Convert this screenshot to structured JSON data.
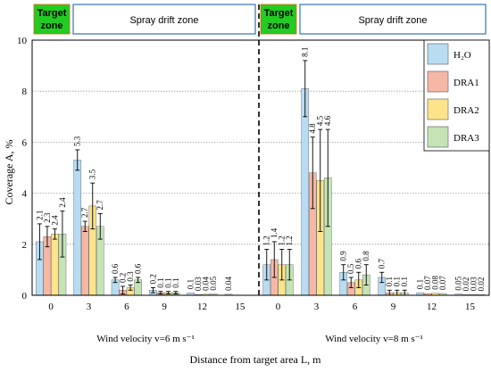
{
  "chart_data": {
    "type": "bar",
    "panels": [
      {
        "zone_target_label": [
          "Target",
          "zone"
        ],
        "zone_drift_label": "Spray drift zone",
        "footer_label": "Wind velocity v=6 m s⁻¹",
        "categories": [
          "0",
          "3",
          "6",
          "9",
          "12",
          "15"
        ],
        "series": [
          {
            "name": "H₂O",
            "values": [
              2.1,
              5.3,
              0.6,
              0.2,
              0.1,
              0.04
            ]
          },
          {
            "name": "DRA1",
            "values": [
              2.3,
              2.7,
              0.2,
              0.1,
              0.03,
              null
            ]
          },
          {
            "name": "DRA2",
            "values": [
              2.4,
              3.5,
              0.3,
              0.1,
              0.04,
              null
            ]
          },
          {
            "name": "DRA3",
            "values": [
              2.4,
              2.7,
              0.6,
              0.1,
              0.05,
              null
            ]
          }
        ],
        "errors": [
          [
            0.7,
            0.4,
            0.1,
            0.1,
            null,
            null
          ],
          [
            0.4,
            0.2,
            0.15,
            0.05,
            null,
            null
          ],
          [
            0.2,
            0.9,
            0.1,
            0.05,
            null,
            null
          ],
          [
            0.9,
            0.5,
            0.1,
            0.05,
            null,
            null
          ]
        ]
      },
      {
        "zone_target_label": [
          "Target",
          "zone"
        ],
        "zone_drift_label": "Spray drift zone",
        "footer_label": "Wind velocity v=8 m s⁻¹",
        "categories": [
          "0",
          "3",
          "6",
          "9",
          "12",
          "15"
        ],
        "series": [
          {
            "name": "H₂O",
            "values": [
              1.2,
              8.1,
              0.9,
              0.7,
              0.1,
              0.05
            ]
          },
          {
            "name": "DRA1",
            "values": [
              1.4,
              4.8,
              0.5,
              0.1,
              0.07,
              0.02
            ]
          },
          {
            "name": "DRA2",
            "values": [
              1.2,
              4.5,
              0.6,
              0.1,
              0.08,
              0.03
            ]
          },
          {
            "name": "DRA3",
            "values": [
              1.2,
              4.6,
              0.8,
              0.1,
              0.07,
              0.02
            ]
          }
        ],
        "errors": [
          [
            0.6,
            1.1,
            0.3,
            0.2,
            null,
            null
          ],
          [
            0.7,
            1.4,
            0.2,
            0.1,
            null,
            null
          ],
          [
            0.6,
            2.0,
            0.3,
            0.1,
            null,
            null
          ],
          [
            0.6,
            1.9,
            0.4,
            0.1,
            null,
            null
          ]
        ]
      }
    ],
    "legend": [
      "H₂O",
      "DRA1",
      "DRA2",
      "DRA3"
    ],
    "legend_position": "top-right",
    "colors": [
      "#b9dcf2",
      "#f5b8a6",
      "#fde38a",
      "#c4e4b5"
    ],
    "zone_target_color": "#22cc22",
    "zone_drift_border": "#2e75b6",
    "ylabel": "Coverage  A, %",
    "xlabel": "Distance from target area  L, m",
    "ylim": [
      0,
      10
    ],
    "yticks": [
      0,
      2,
      4,
      6,
      8,
      10
    ],
    "grid": true
  }
}
